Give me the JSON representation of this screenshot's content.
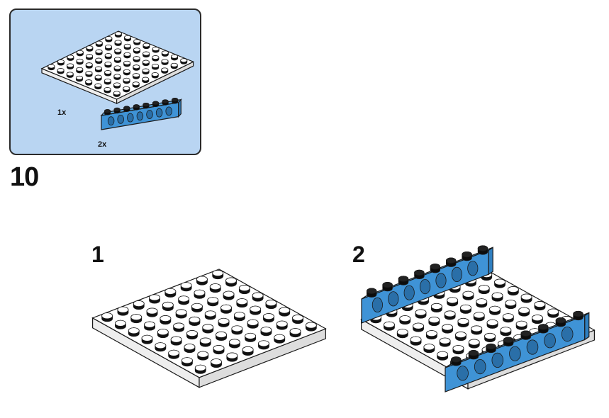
{
  "parts_list": {
    "items": [
      {
        "name": "plate-8x8",
        "quantity": "1x",
        "color": "#ffffff"
      },
      {
        "name": "technic-brick-1x8",
        "quantity": "2x",
        "color": "#3f93d6"
      }
    ]
  },
  "step": {
    "number": "10",
    "sub_steps": [
      {
        "number": "1"
      },
      {
        "number": "2"
      }
    ]
  },
  "colors": {
    "parts_box_bg": "#b9d5f2",
    "brick_blue": "#3f93d6",
    "plate_white": "#ffffff",
    "outline": "#1a1a1a"
  }
}
